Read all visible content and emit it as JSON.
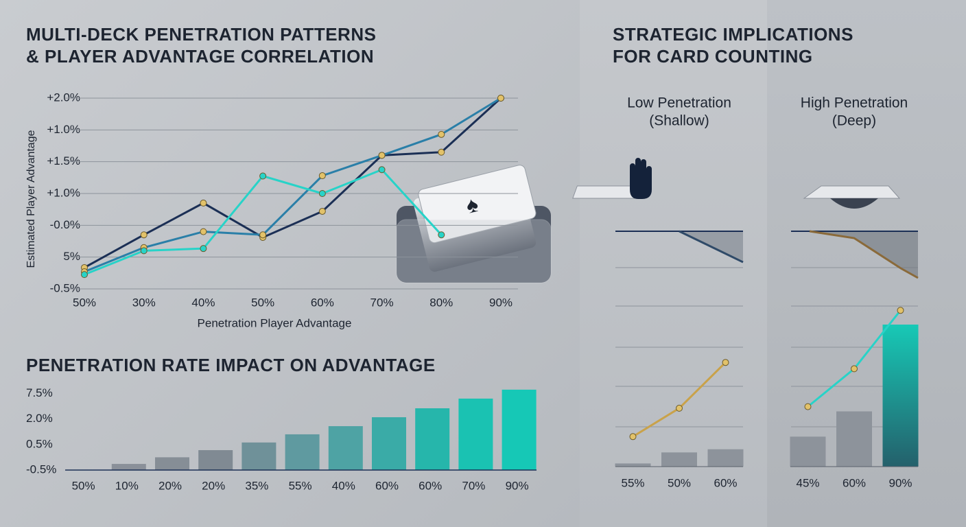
{
  "chart_data": [
    {
      "type": "line",
      "title": [
        "MULTI-DECK PENETRATION PATTERNS",
        "& PLAYER ADVANTAGE CORRELATION"
      ],
      "y_label": "Estimated Player Advantage",
      "x_label": "Penetration Player Advantage",
      "categories": [
        "50%",
        "30%",
        "40%",
        "50%",
        "60%",
        "70%",
        "80%",
        "90%"
      ],
      "ylim": [
        0,
        6
      ],
      "yticks": [
        {
          "value": 0,
          "label": "-0.5%"
        },
        {
          "value": 1,
          "label": "5%"
        },
        {
          "value": 2,
          "label": "-0.0%"
        },
        {
          "value": 3,
          "label": "+1.0%"
        },
        {
          "value": 4,
          "label": "+1.5%"
        },
        {
          "value": 5,
          "label": "+1.0%"
        },
        {
          "value": 6,
          "label": "+2.0%"
        }
      ],
      "grid": true,
      "series": [
        {
          "color": "#1b2f55",
          "values": [
            0.67,
            1.7,
            2.7,
            1.62,
            2.44,
            4.2,
            4.3,
            6
          ]
        },
        {
          "color": "#2a7fa8",
          "values": [
            0.54,
            1.3,
            1.8,
            1.7,
            3.56,
            4.2,
            4.86,
            6
          ]
        },
        {
          "color": "#27d3c8",
          "values": [
            0.45,
            1.2,
            1.27,
            3.55,
            3.0,
            3.75,
            1.7,
            null
          ]
        }
      ]
    },
    {
      "type": "bar",
      "title": "PENETRATION RATE IMPACT ON ADVANTAGE",
      "categories": [
        "50%",
        "10%",
        "20%",
        "20%",
        "35%",
        "55%",
        "40%",
        "60%",
        "60%",
        "70%",
        "90%"
      ],
      "values": [
        0,
        0.24,
        0.5,
        0.78,
        1.08,
        1.4,
        1.72,
        2.07,
        2.42,
        2.8,
        3.15
      ],
      "colors": [
        "#8a9099",
        "#8a9099",
        "#868e96",
        "#808a93",
        "#6f9199",
        "#5f9aa0",
        "#4ea3a4",
        "#3aaba7",
        "#26b6ab",
        "#1ac2b2",
        "#16c8b6"
      ],
      "ylim": [
        0,
        3.2
      ],
      "yticks": [
        {
          "value": 0,
          "label": "-0.5%"
        },
        {
          "value": 1,
          "label": "0.5%"
        },
        {
          "value": 2,
          "label": "2.0%"
        },
        {
          "value": 3,
          "label": "7.5%"
        }
      ]
    },
    {
      "type": "combo",
      "title": [
        "Low Penetration",
        "(Shallow)"
      ],
      "categories": [
        "55%",
        "50%",
        "60%"
      ],
      "line_values": [
        19,
        37,
        66
      ],
      "line_color": "#c9a24a",
      "bar_values": [
        2,
        9,
        11
      ],
      "bar_color": "#8d939b",
      "ylim": [
        0,
        100
      ]
    },
    {
      "type": "combo",
      "title": [
        "High Penetration",
        "(Deep)"
      ],
      "categories": [
        "45%",
        "60%",
        "90%"
      ],
      "line_values": [
        38,
        62,
        99
      ],
      "line_color": "#27d3c8",
      "bar_values": [
        19,
        35,
        90
      ],
      "bar_color": "#8d939b",
      "ylim": [
        0,
        100
      ]
    }
  ],
  "section_title": [
    "STRATEGIC IMPLICATIONS",
    "FOR CARD COUNTING"
  ]
}
